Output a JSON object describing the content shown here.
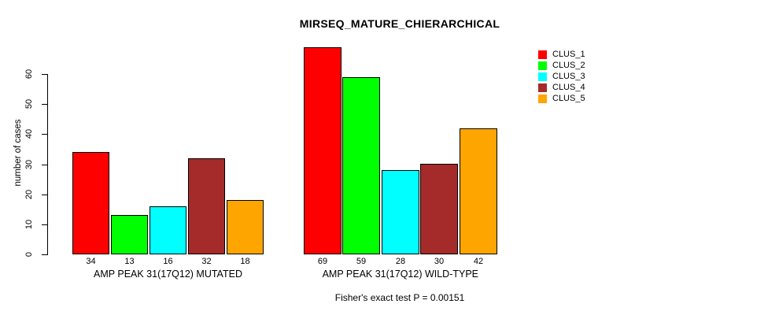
{
  "chart_data": {
    "type": "bar",
    "title": "MIRSEQ_MATURE_CHIERARCHICAL",
    "ylabel": "number of cases",
    "xlabel": "",
    "ylim": [
      0,
      60
    ],
    "yticks": [
      0,
      10,
      20,
      30,
      40,
      50,
      60
    ],
    "grid": false,
    "legend_position": "right",
    "annotation": "Fisher's exact test P = 0.00151",
    "categories": [
      "AMP PEAK 31(17Q12) MUTATED",
      "AMP PEAK 31(17Q12) WILD-TYPE"
    ],
    "series": [
      {
        "name": "CLUS_1",
        "color": "#FF0000",
        "values": [
          34,
          69
        ]
      },
      {
        "name": "CLUS_2",
        "color": "#00FF00",
        "values": [
          13,
          59
        ]
      },
      {
        "name": "CLUS_3",
        "color": "#00FFFF",
        "values": [
          16,
          28
        ]
      },
      {
        "name": "CLUS_4",
        "color": "#A52A2A",
        "values": [
          32,
          30
        ]
      },
      {
        "name": "CLUS_5",
        "color": "#FFA500",
        "values": [
          18,
          42
        ]
      }
    ],
    "bar_value_labels": {
      "AMP PEAK 31(17Q12) MUTATED": [
        34,
        13,
        16,
        32,
        18
      ],
      "AMP PEAK 31(17Q12) WILD-TYPE": [
        69,
        59,
        28,
        30,
        42
      ]
    },
    "axis_color": "#000000",
    "bar_border_color": "#000000"
  }
}
